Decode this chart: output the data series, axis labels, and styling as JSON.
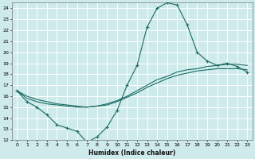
{
  "xlabel": "Humidex (Indice chaleur)",
  "bg_color": "#ceeaea",
  "line_color": "#1a6b62",
  "grid_color": "#b8d8d8",
  "xlim": [
    -0.5,
    23.5
  ],
  "ylim": [
    12,
    24.5
  ],
  "yticks": [
    12,
    13,
    14,
    15,
    16,
    17,
    18,
    19,
    20,
    21,
    22,
    23,
    24
  ],
  "xticks": [
    0,
    1,
    2,
    3,
    4,
    5,
    6,
    7,
    8,
    9,
    10,
    11,
    12,
    13,
    14,
    15,
    16,
    17,
    18,
    19,
    20,
    21,
    22,
    23
  ],
  "series1_x": [
    0,
    1,
    2,
    3,
    4,
    5,
    6,
    7,
    8,
    9,
    10,
    11,
    12,
    13,
    14,
    15,
    16,
    17,
    18,
    19,
    20,
    21,
    22,
    23
  ],
  "series1_y": [
    16.5,
    15.5,
    15.0,
    14.3,
    13.4,
    13.1,
    12.8,
    11.8,
    12.3,
    13.2,
    14.7,
    17.0,
    18.8,
    22.3,
    24.0,
    24.5,
    24.3,
    22.5,
    20.0,
    19.2,
    18.8,
    19.0,
    18.7,
    18.2
  ],
  "series2_x": [
    0,
    1,
    2,
    3,
    4,
    5,
    6,
    7,
    8,
    9,
    10,
    11,
    12,
    13,
    14,
    15,
    16,
    17,
    18,
    19,
    20,
    21,
    22,
    23
  ],
  "series2_y": [
    16.5,
    16.0,
    15.7,
    15.5,
    15.3,
    15.2,
    15.1,
    15.0,
    15.1,
    15.3,
    15.6,
    16.0,
    16.5,
    17.0,
    17.5,
    17.8,
    18.2,
    18.4,
    18.5,
    18.7,
    18.8,
    18.9,
    18.9,
    18.8
  ],
  "series3_x": [
    0,
    1,
    2,
    3,
    4,
    5,
    6,
    7,
    8,
    9,
    10,
    11,
    12,
    13,
    14,
    15,
    16,
    17,
    18,
    19,
    20,
    21,
    22,
    23
  ],
  "series3_y": [
    16.5,
    15.8,
    15.5,
    15.3,
    15.2,
    15.1,
    15.0,
    15.0,
    15.1,
    15.2,
    15.5,
    15.9,
    16.3,
    16.8,
    17.2,
    17.6,
    17.9,
    18.1,
    18.3,
    18.4,
    18.5,
    18.5,
    18.5,
    18.4
  ]
}
